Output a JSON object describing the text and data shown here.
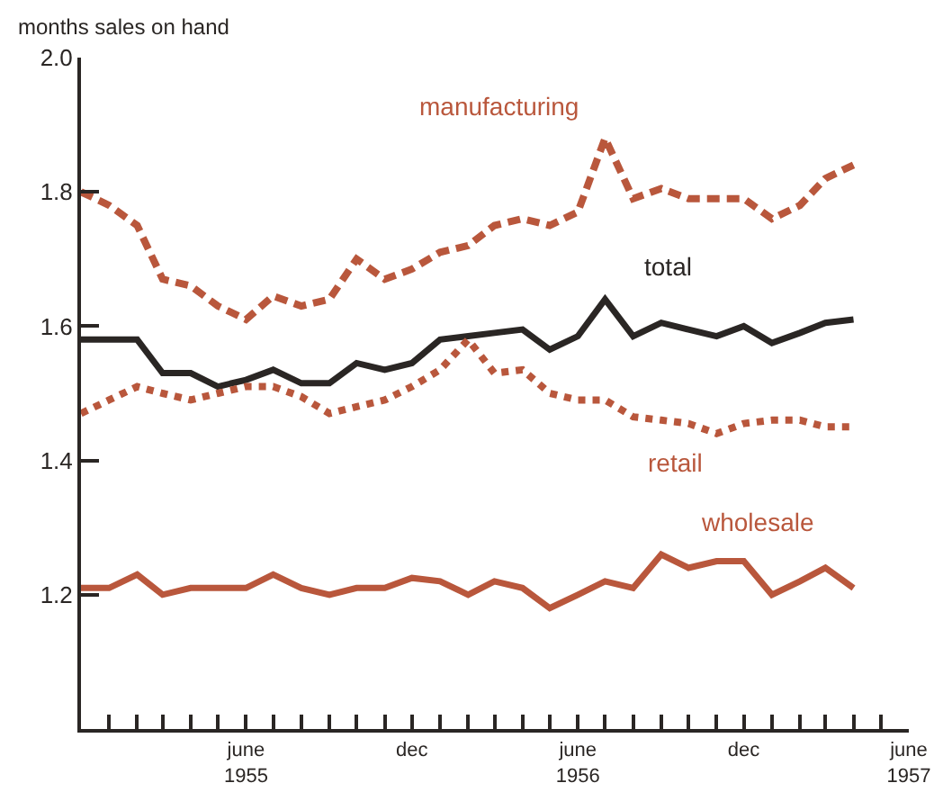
{
  "chart_data": {
    "type": "line",
    "ylabel": "months sales on hand",
    "x": [
      "1954-12",
      "1955-01",
      "1955-02",
      "1955-03",
      "1955-04",
      "1955-05",
      "1955-06",
      "1955-07",
      "1955-08",
      "1955-09",
      "1955-10",
      "1955-11",
      "1955-12",
      "1956-01",
      "1956-02",
      "1956-03",
      "1956-04",
      "1956-05",
      "1956-06",
      "1956-07",
      "1956-08",
      "1956-09",
      "1956-10",
      "1956-11",
      "1956-12",
      "1957-01",
      "1957-02",
      "1957-03",
      "1957-04"
    ],
    "series": [
      {
        "name": "manufacturing",
        "color": "#b9573c",
        "line_style": "dashed",
        "values": [
          1.8,
          1.78,
          1.75,
          1.67,
          1.66,
          1.63,
          1.61,
          1.645,
          1.63,
          1.64,
          1.7,
          1.67,
          1.685,
          1.71,
          1.72,
          1.75,
          1.76,
          1.75,
          1.77,
          1.88,
          1.79,
          1.805,
          1.79,
          1.79,
          1.79,
          1.76,
          1.78,
          1.82,
          1.84
        ]
      },
      {
        "name": "total",
        "color": "#2a2624",
        "line_style": "solid",
        "values": [
          1.58,
          1.58,
          1.58,
          1.53,
          1.53,
          1.51,
          1.52,
          1.535,
          1.515,
          1.515,
          1.545,
          1.535,
          1.545,
          1.58,
          1.585,
          1.59,
          1.595,
          1.565,
          1.585,
          1.64,
          1.585,
          1.605,
          1.595,
          1.585,
          1.6,
          1.575,
          1.59,
          1.605,
          1.61
        ]
      },
      {
        "name": "retail",
        "color": "#b9573c",
        "line_style": "dotted",
        "values": [
          1.47,
          1.49,
          1.51,
          1.5,
          1.49,
          1.5,
          1.51,
          1.51,
          1.495,
          1.47,
          1.48,
          1.49,
          1.51,
          1.535,
          1.58,
          1.53,
          1.535,
          1.5,
          1.49,
          1.49,
          1.465,
          1.46,
          1.455,
          1.44,
          1.455,
          1.46,
          1.46,
          1.45,
          1.45
        ]
      },
      {
        "name": "wholesale",
        "color": "#b9573c",
        "line_style": "solid",
        "values": [
          1.21,
          1.21,
          1.23,
          1.2,
          1.21,
          1.21,
          1.21,
          1.23,
          1.21,
          1.2,
          1.21,
          1.21,
          1.225,
          1.22,
          1.2,
          1.22,
          1.21,
          1.18,
          1.2,
          1.22,
          1.21,
          1.26,
          1.24,
          1.25,
          1.25,
          1.2,
          1.22,
          1.24,
          1.21
        ]
      }
    ],
    "xlim": [
      "1954-12",
      "1957-06"
    ],
    "xticks": [
      {
        "value": "1955-01",
        "label": null
      },
      {
        "value": "1955-02",
        "label": null
      },
      {
        "value": "1955-03",
        "label": null
      },
      {
        "value": "1955-04",
        "label": null
      },
      {
        "value": "1955-05",
        "label": null
      },
      {
        "value": "1955-06",
        "label": "june\n1955"
      },
      {
        "value": "1955-07",
        "label": null
      },
      {
        "value": "1955-08",
        "label": null
      },
      {
        "value": "1955-09",
        "label": null
      },
      {
        "value": "1955-10",
        "label": null
      },
      {
        "value": "1955-11",
        "label": null
      },
      {
        "value": "1955-12",
        "label": "dec"
      },
      {
        "value": "1956-01",
        "label": null
      },
      {
        "value": "1956-02",
        "label": null
      },
      {
        "value": "1956-03",
        "label": null
      },
      {
        "value": "1956-04",
        "label": null
      },
      {
        "value": "1956-05",
        "label": null
      },
      {
        "value": "1956-06",
        "label": "june\n1956"
      },
      {
        "value": "1956-07",
        "label": null
      },
      {
        "value": "1956-08",
        "label": null
      },
      {
        "value": "1956-09",
        "label": null
      },
      {
        "value": "1956-10",
        "label": null
      },
      {
        "value": "1956-11",
        "label": null
      },
      {
        "value": "1956-12",
        "label": "dec"
      },
      {
        "value": "1957-01",
        "label": null
      },
      {
        "value": "1957-02",
        "label": null
      },
      {
        "value": "1957-03",
        "label": null
      },
      {
        "value": "1957-04",
        "label": null
      },
      {
        "value": "1957-05",
        "label": null
      },
      {
        "value": "1957-06",
        "label": "june\n1957"
      }
    ],
    "ylim": [
      1.0,
      2.0
    ],
    "yticks": [
      {
        "value": 1.2,
        "label": "1.2"
      },
      {
        "value": 1.4,
        "label": "1.4"
      },
      {
        "value": 1.6,
        "label": "1.6"
      },
      {
        "value": 1.8,
        "label": "1.8"
      },
      {
        "value": 2,
        "label": "2.0"
      }
    ],
    "grid": false,
    "legend": false,
    "marker": "none"
  }
}
